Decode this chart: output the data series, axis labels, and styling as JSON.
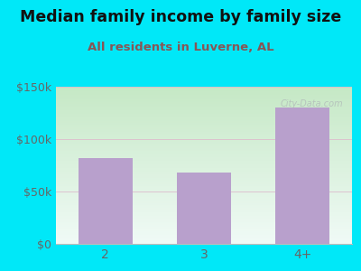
{
  "title": "Median family income by family size",
  "subtitle": "All residents in Luverne, AL",
  "categories": [
    "2",
    "3",
    "4+"
  ],
  "values": [
    82000,
    68000,
    130000
  ],
  "bar_color": "#b8a0cc",
  "background_outer": "#00e8f8",
  "grad_top": "#c5e8c5",
  "grad_bottom": "#f0faf6",
  "title_color": "#111111",
  "subtitle_color": "#885555",
  "tick_label_color": "#666666",
  "ylim": [
    0,
    150000
  ],
  "yticks": [
    0,
    50000,
    100000,
    150000
  ],
  "ytick_labels": [
    "$0",
    "$50k",
    "$100k",
    "$150k"
  ],
  "watermark": "City-Data.com",
  "title_fontsize": 12.5,
  "subtitle_fontsize": 9.5
}
